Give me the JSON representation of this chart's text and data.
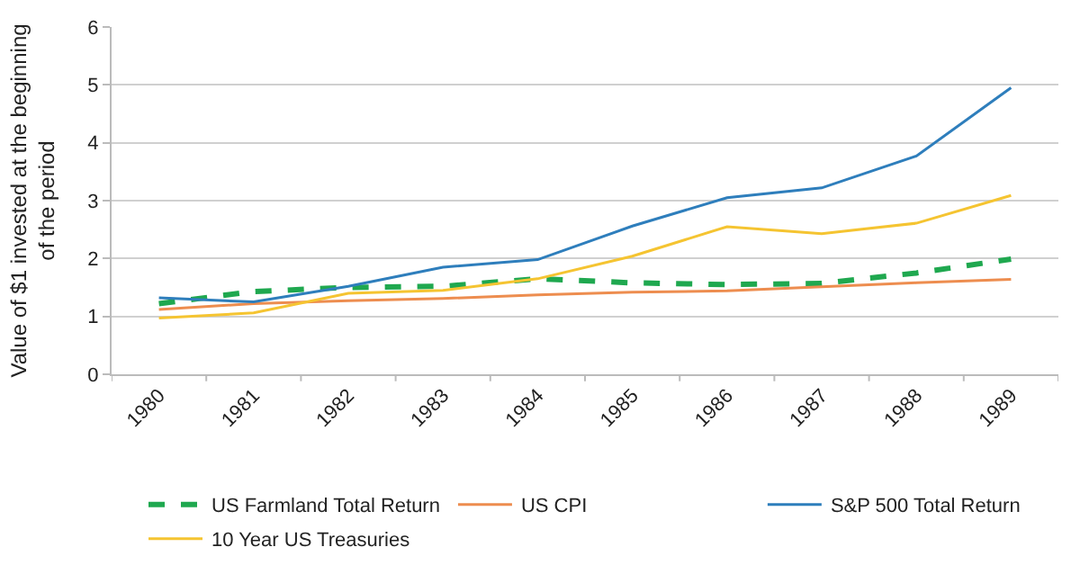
{
  "chart_data": {
    "type": "line",
    "ylabel": "Value of $1 invested at the beginning of the period",
    "categories": [
      "1980",
      "1981",
      "1982",
      "1983",
      "1984",
      "1985",
      "1986",
      "1987",
      "1988",
      "1989"
    ],
    "series": [
      {
        "name": "US Farmland Total Return",
        "color": "#1fa84f",
        "line_style": "dashed",
        "values": [
          1.22,
          1.43,
          1.5,
          1.52,
          1.65,
          1.58,
          1.55,
          1.57,
          1.75,
          1.99
        ]
      },
      {
        "name": "US CPI",
        "color": "#ed8d4f",
        "line_style": "solid",
        "values": [
          1.12,
          1.22,
          1.27,
          1.31,
          1.37,
          1.42,
          1.44,
          1.51,
          1.58,
          1.64
        ]
      },
      {
        "name": "S&P 500 Total Return",
        "color": "#2e7ebc",
        "line_style": "solid",
        "values": [
          1.32,
          1.25,
          1.52,
          1.85,
          1.98,
          2.56,
          3.05,
          3.22,
          3.77,
          4.95
        ]
      },
      {
        "name": "10 Year US Treasuries",
        "color": "#f5c431",
        "line_style": "solid",
        "values": [
          0.97,
          1.06,
          1.4,
          1.45,
          1.65,
          2.04,
          2.55,
          2.43,
          2.61,
          3.09
        ]
      }
    ],
    "ylim": [
      0,
      6
    ],
    "yticks": [
      0,
      1,
      2,
      3,
      4,
      5,
      6
    ],
    "grid": "y",
    "legend": "bottom",
    "marker": "none"
  }
}
